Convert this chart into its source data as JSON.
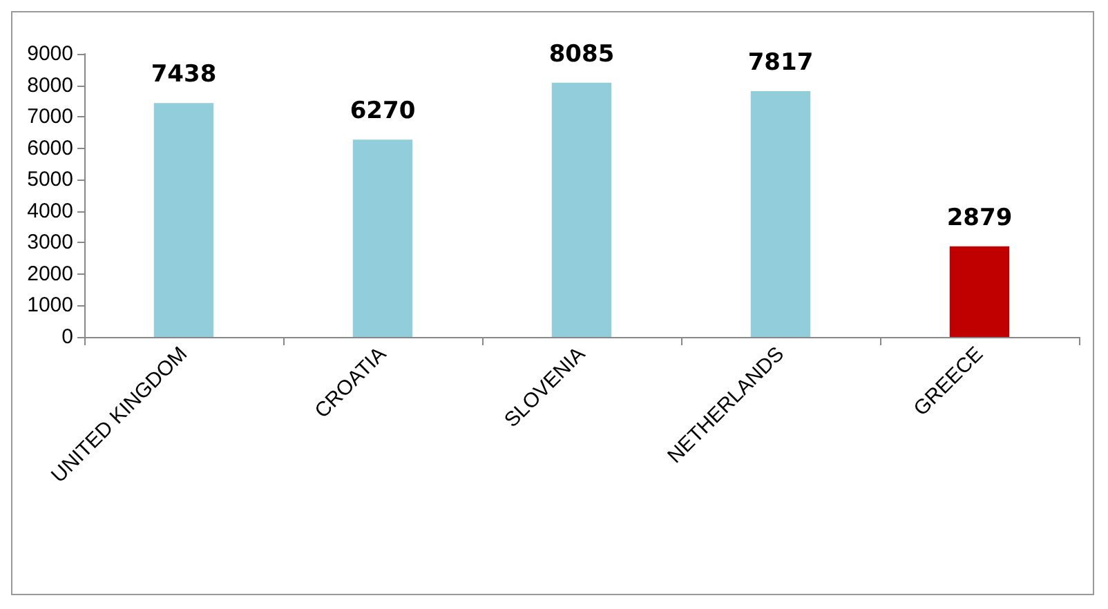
{
  "chart_data": {
    "type": "bar",
    "categories": [
      "UNITED KINGDOM",
      "CROATIA",
      "SLOVENIA",
      "NETHERLANDS",
      "GREECE"
    ],
    "values": [
      7438,
      6270,
      8085,
      7817,
      2879
    ],
    "colors": [
      "#92cddc",
      "#92cddc",
      "#92cddc",
      "#92cddc",
      "#c00000"
    ],
    "ylim": [
      0,
      9000
    ],
    "yticks": [
      0,
      1000,
      2000,
      3000,
      4000,
      5000,
      6000,
      7000,
      8000,
      9000
    ],
    "grid": false,
    "data_labels": true
  }
}
